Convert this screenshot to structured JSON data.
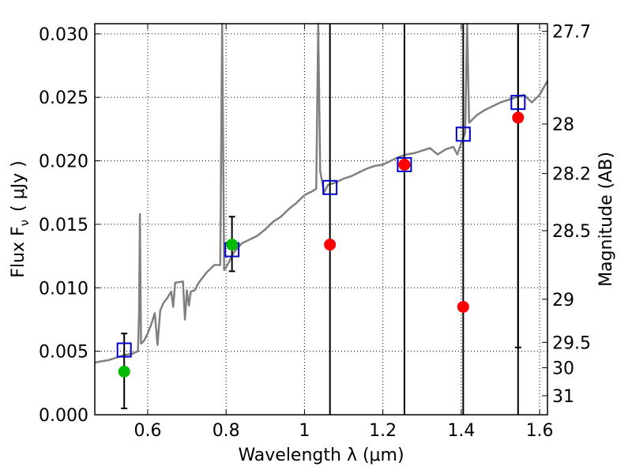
{
  "chart_data": {
    "type": "scatter",
    "xlabel": "Wavelength  λ (μm)",
    "ylabel": "Flux  F",
    "ylabel_sub": "ν",
    "ylabel_unit": "( μJy )",
    "y2label": "Magnitude (AB)",
    "xlim": [
      0.465,
      1.62
    ],
    "ylim": [
      0.0,
      0.0308
    ],
    "grid": true,
    "x_ticks": [
      {
        "value": 0.6,
        "label": "0.6"
      },
      {
        "value": 0.8,
        "label": "0.8"
      },
      {
        "value": 1.0,
        "label": "1"
      },
      {
        "value": 1.2,
        "label": "1.2"
      },
      {
        "value": 1.4,
        "label": "1.4"
      },
      {
        "value": 1.6,
        "label": "1.6"
      }
    ],
    "y_ticks": [
      {
        "value": 0.0,
        "label": "0.000"
      },
      {
        "value": 0.005,
        "label": "0.005"
      },
      {
        "value": 0.01,
        "label": "0.010"
      },
      {
        "value": 0.015,
        "label": "0.015"
      },
      {
        "value": 0.02,
        "label": "0.020"
      },
      {
        "value": 0.025,
        "label": "0.025"
      },
      {
        "value": 0.03,
        "label": "0.030"
      }
    ],
    "y2_ticks": [
      {
        "flux": 0.0302,
        "label": "27.7"
      },
      {
        "flux": 0.0229,
        "label": "28"
      },
      {
        "flux": 0.019,
        "label": "28.2"
      },
      {
        "flux": 0.0145,
        "label": "28.5"
      },
      {
        "flux": 0.0091,
        "label": "29"
      },
      {
        "flux": 0.0057,
        "label": "29.5"
      },
      {
        "flux": 0.0037,
        "label": "30"
      },
      {
        "flux": 0.0015,
        "label": "31"
      }
    ],
    "spectrum": {
      "color": "#808080",
      "points": [
        [
          0.465,
          0.0041
        ],
        [
          0.48,
          0.0042
        ],
        [
          0.5,
          0.0043
        ],
        [
          0.52,
          0.0045
        ],
        [
          0.54,
          0.0047
        ],
        [
          0.56,
          0.0048
        ],
        [
          0.575,
          0.005
        ],
        [
          0.578,
          0.0081
        ],
        [
          0.58,
          0.0158
        ],
        [
          0.583,
          0.0056
        ],
        [
          0.59,
          0.0058
        ],
        [
          0.6,
          0.0064
        ],
        [
          0.61,
          0.0072
        ],
        [
          0.618,
          0.008
        ],
        [
          0.625,
          0.0055
        ],
        [
          0.632,
          0.0082
        ],
        [
          0.64,
          0.0088
        ],
        [
          0.65,
          0.0092
        ],
        [
          0.66,
          0.0097
        ],
        [
          0.665,
          0.0085
        ],
        [
          0.67,
          0.0104
        ],
        [
          0.69,
          0.0105
        ],
        [
          0.695,
          0.0075
        ],
        [
          0.7,
          0.0098
        ],
        [
          0.705,
          0.0086
        ],
        [
          0.71,
          0.0097
        ],
        [
          0.72,
          0.0098
        ],
        [
          0.73,
          0.0104
        ],
        [
          0.75,
          0.0112
        ],
        [
          0.77,
          0.0118
        ],
        [
          0.785,
          0.0118
        ],
        [
          0.79,
          0.0308
        ],
        [
          0.795,
          0.0114
        ],
        [
          0.8,
          0.0116
        ],
        [
          0.82,
          0.0128
        ],
        [
          0.84,
          0.0135
        ],
        [
          0.86,
          0.0138
        ],
        [
          0.88,
          0.0141
        ],
        [
          0.9,
          0.0146
        ],
        [
          0.92,
          0.0152
        ],
        [
          0.94,
          0.0156
        ],
        [
          0.96,
          0.0162
        ],
        [
          0.98,
          0.0167
        ],
        [
          1.0,
          0.0173
        ],
        [
          1.02,
          0.0176
        ],
        [
          1.03,
          0.0178
        ],
        [
          1.035,
          0.0308
        ],
        [
          1.04,
          0.0192
        ],
        [
          1.05,
          0.0175
        ],
        [
          1.06,
          0.0181
        ],
        [
          1.08,
          0.0183
        ],
        [
          1.1,
          0.0186
        ],
        [
          1.12,
          0.0188
        ],
        [
          1.14,
          0.0191
        ],
        [
          1.16,
          0.0194
        ],
        [
          1.18,
          0.0196
        ],
        [
          1.2,
          0.0197
        ],
        [
          1.22,
          0.02
        ],
        [
          1.24,
          0.0203
        ],
        [
          1.26,
          0.0205
        ],
        [
          1.28,
          0.0206
        ],
        [
          1.3,
          0.0208
        ],
        [
          1.32,
          0.021
        ],
        [
          1.34,
          0.0205
        ],
        [
          1.36,
          0.0209
        ],
        [
          1.38,
          0.0211
        ],
        [
          1.39,
          0.0205
        ],
        [
          1.4,
          0.0214
        ],
        [
          1.41,
          0.0222
        ],
        [
          1.415,
          0.0308
        ],
        [
          1.42,
          0.023
        ],
        [
          1.44,
          0.0236
        ],
        [
          1.46,
          0.024
        ],
        [
          1.48,
          0.0243
        ],
        [
          1.5,
          0.0246
        ],
        [
          1.52,
          0.0248
        ],
        [
          1.54,
          0.025
        ],
        [
          1.56,
          0.0252
        ],
        [
          1.58,
          0.0246
        ],
        [
          1.6,
          0.0252
        ],
        [
          1.62,
          0.0263
        ]
      ]
    },
    "series": [
      {
        "marker": "open-square",
        "color": "#0000cc",
        "points": [
          {
            "x": 0.54,
            "y": 0.0051
          },
          {
            "x": 0.815,
            "y": 0.013
          },
          {
            "x": 1.065,
            "y": 0.0179
          },
          {
            "x": 1.255,
            "y": 0.0197
          },
          {
            "x": 1.405,
            "y": 0.0221
          },
          {
            "x": 1.545,
            "y": 0.0246
          }
        ]
      },
      {
        "marker": "filled-circle",
        "color": "#ff0000",
        "points": [
          {
            "x": 1.065,
            "y": 0.0134
          },
          {
            "x": 1.255,
            "y": 0.0197
          },
          {
            "x": 1.405,
            "y": 0.0085
          },
          {
            "x": 1.545,
            "y": 0.0234
          }
        ]
      },
      {
        "marker": "filled-circle",
        "color": "#00bb00",
        "points": [
          {
            "x": 0.54,
            "y": 0.0034
          },
          {
            "x": 0.815,
            "y": 0.0134
          }
        ]
      }
    ],
    "error_bars": [
      {
        "x": 0.54,
        "low": 0.0005,
        "high": 0.0064
      },
      {
        "x": 0.815,
        "low": 0.0113,
        "high": 0.0156
      },
      {
        "x": 1.545,
        "low": 0.0053,
        "high": 0.0308
      }
    ],
    "vertical_lines": [
      1.065,
      1.255,
      1.405,
      1.545
    ]
  }
}
